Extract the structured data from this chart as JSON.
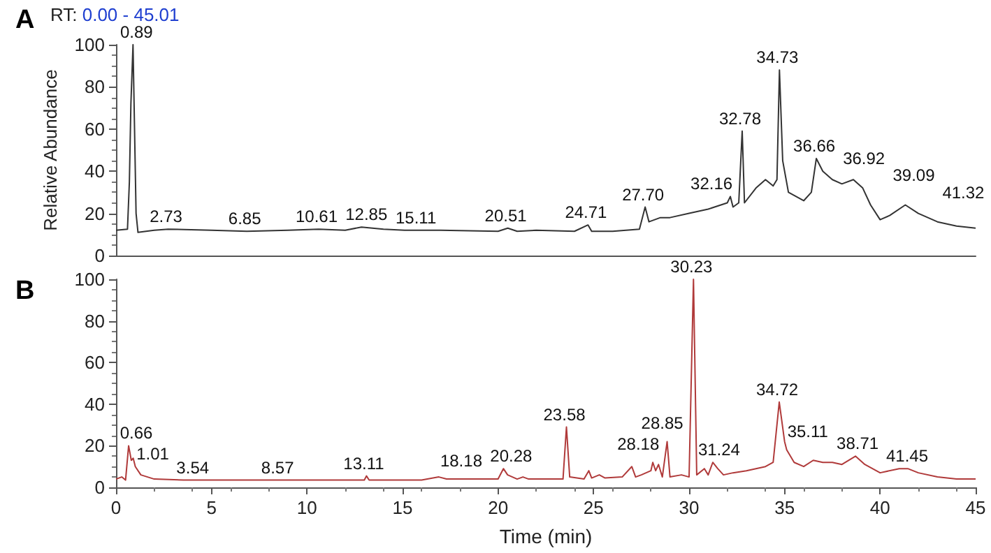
{
  "chart_data": [
    {
      "type": "line",
      "title": "A",
      "ylabel": "Relative Abundance",
      "xlim": [
        0,
        45
      ],
      "xticks": [
        0,
        5,
        10,
        15,
        20,
        25,
        30,
        35,
        40,
        45
      ],
      "ylim": [
        0,
        100
      ],
      "yticks": [
        0,
        20,
        40,
        60,
        80,
        100
      ],
      "tick_labels": "y",
      "marker": "none",
      "series": [
        {
          "color": "#333333",
          "x": [
            0,
            0.6,
            0.7,
            0.78,
            0.89,
            0.95,
            1.05,
            1.15,
            2,
            2.73,
            5,
            6.85,
            9,
            10.61,
            12,
            12.85,
            14,
            15.11,
            17,
            20,
            20.51,
            21,
            22,
            24,
            24.71,
            24.9,
            26,
            27.4,
            27.7,
            27.9,
            28.5,
            29,
            30,
            31,
            32,
            32.16,
            32.3,
            32.6,
            32.78,
            32.9,
            33.5,
            34,
            34.4,
            34.6,
            34.73,
            34.9,
            35.2,
            36,
            36.4,
            36.66,
            37,
            37.5,
            38,
            38.6,
            39.09,
            39.5,
            40,
            40.5,
            41.32,
            42,
            43,
            44,
            45
          ],
          "values": [
            12,
            12.5,
            35,
            72,
            100,
            70,
            20,
            11,
            12,
            12.5,
            12,
            11.5,
            12,
            12.5,
            12,
            13.5,
            12.5,
            12,
            12,
            11.5,
            13,
            11.5,
            12,
            11.5,
            14.5,
            11.5,
            11.5,
            12.5,
            23,
            16,
            18,
            18,
            20,
            22,
            25,
            28,
            23,
            25,
            59,
            25,
            32,
            36,
            33,
            36,
            88,
            45,
            30,
            26,
            30,
            46,
            40,
            36,
            34,
            36,
            32,
            24,
            17,
            19,
            24,
            20,
            16,
            14,
            13
          ]
        }
      ],
      "annotations": [
        "RT: 0.00 - 45.01",
        {
          "text": "0.89",
          "x": 0.89,
          "y": 100
        },
        {
          "text": "2.73",
          "x": 2.73,
          "y": 12.5
        },
        {
          "text": "6.85",
          "x": 6.85,
          "y": 11.5
        },
        {
          "text": "10.61",
          "x": 10.61,
          "y": 12.5
        },
        {
          "text": "12.85",
          "x": 12.85,
          "y": 13.5
        },
        {
          "text": "15.11",
          "x": 15.11,
          "y": 12
        },
        {
          "text": "20.51",
          "x": 20.51,
          "y": 13
        },
        {
          "text": "24.71",
          "x": 24.71,
          "y": 14.5
        },
        {
          "text": "27.70",
          "x": 27.7,
          "y": 23
        },
        {
          "text": "32.16",
          "x": 32.16,
          "y": 28
        },
        {
          "text": "32.78",
          "x": 32.78,
          "y": 59
        },
        {
          "text": "34.73",
          "x": 34.73,
          "y": 88
        },
        {
          "text": "36.66",
          "x": 36.66,
          "y": 46
        },
        {
          "text": "36.92",
          "x": 36.92,
          "y": 40
        },
        {
          "text": "39.09",
          "x": 39.09,
          "y": 32
        },
        {
          "text": "41.32",
          "x": 41.32,
          "y": 24
        }
      ]
    },
    {
      "type": "line",
      "title": "B",
      "xlabel": "Time (min)",
      "xlim": [
        0,
        45
      ],
      "xticks": [
        0,
        5,
        10,
        15,
        20,
        25,
        30,
        35,
        40,
        45
      ],
      "ylim": [
        0,
        100
      ],
      "yticks": [
        0,
        20,
        40,
        60,
        80,
        100
      ],
      "marker": "none",
      "series": [
        {
          "color": "#b03a3a",
          "x": [
            0,
            0.3,
            0.5,
            0.66,
            0.8,
            0.9,
            1.01,
            1.3,
            2,
            3.54,
            6,
            8.57,
            11,
            13,
            13.11,
            13.25,
            16,
            16.9,
            17.3,
            18.18,
            20,
            20.28,
            20.5,
            21,
            21.3,
            21.6,
            23.4,
            23.58,
            23.75,
            24.5,
            24.75,
            24.9,
            25.3,
            25.6,
            26.5,
            27,
            27.2,
            27.5,
            28,
            28.1,
            28.25,
            28.4,
            28.6,
            28.85,
            29,
            29.6,
            30,
            30.23,
            30.4,
            30.8,
            31,
            31.24,
            31.5,
            31.8,
            32.3,
            33,
            34,
            34.4,
            34.72,
            35,
            35.11,
            35.5,
            36,
            36.5,
            37,
            37.5,
            38,
            38.71,
            39.2,
            40,
            41,
            41.45,
            42,
            43,
            44,
            45
          ],
          "values": [
            4,
            5,
            3.5,
            20,
            13,
            14,
            10,
            6,
            4,
            3.5,
            3.5,
            3.5,
            3.5,
            3.5,
            5.5,
            3.5,
            3.5,
            5,
            4,
            4,
            4,
            9,
            6,
            4,
            5,
            4,
            4,
            29,
            5,
            4,
            8,
            4.5,
            6,
            4.5,
            5,
            10,
            5,
            6,
            8,
            12,
            8,
            11,
            5,
            22,
            5,
            6,
            5,
            100,
            6,
            9,
            6,
            12,
            9,
            6,
            7,
            8,
            10,
            12,
            41,
            22,
            18,
            12,
            10,
            13,
            12,
            12,
            11,
            15,
            11,
            7,
            9,
            9,
            7,
            5,
            4,
            4
          ]
        }
      ],
      "annotations": [
        {
          "text": "0.66",
          "x": 0.66,
          "y": 20
        },
        {
          "text": "1.01",
          "x": 1.01,
          "y": 10
        },
        {
          "text": "3.54",
          "x": 3.54,
          "y": 3.5
        },
        {
          "text": "8.57",
          "x": 8.57,
          "y": 3.5
        },
        {
          "text": "13.11",
          "x": 13.11,
          "y": 5.5
        },
        {
          "text": "18.18",
          "x": 18.18,
          "y": 4
        },
        {
          "text": "20.28",
          "x": 20.28,
          "y": 9
        },
        {
          "text": "23.58",
          "x": 23.58,
          "y": 29
        },
        {
          "text": "28.18",
          "x": 28.18,
          "y": 12
        },
        {
          "text": "28.85",
          "x": 28.85,
          "y": 22
        },
        {
          "text": "30.23",
          "x": 30.23,
          "y": 100
        },
        {
          "text": "31.24",
          "x": 31.24,
          "y": 12
        },
        {
          "text": "34.72",
          "x": 34.72,
          "y": 41
        },
        {
          "text": "35.11",
          "x": 35.11,
          "y": 18
        },
        {
          "text": "38.71",
          "x": 38.71,
          "y": 15
        },
        {
          "text": "41.45",
          "x": 41.45,
          "y": 9
        }
      ]
    }
  ]
}
